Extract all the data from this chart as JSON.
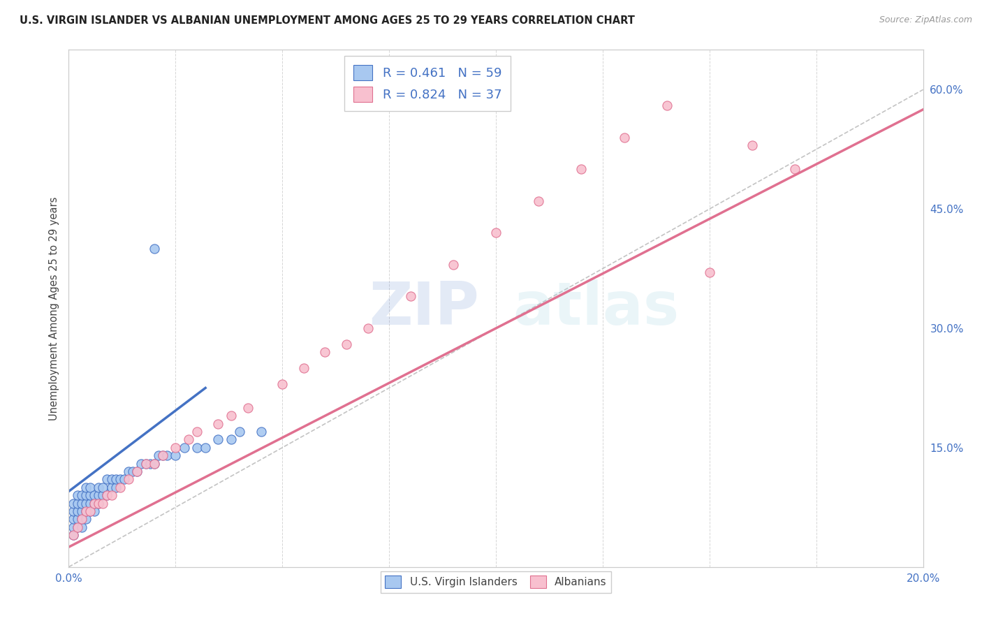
{
  "title": "U.S. VIRGIN ISLANDER VS ALBANIAN UNEMPLOYMENT AMONG AGES 25 TO 29 YEARS CORRELATION CHART",
  "source": "Source: ZipAtlas.com",
  "ylabel": "Unemployment Among Ages 25 to 29 years",
  "ylabel_ticks_labels": [
    "15.0%",
    "30.0%",
    "45.0%",
    "60.0%"
  ],
  "ylabel_ticks_vals": [
    0.15,
    0.3,
    0.45,
    0.6
  ],
  "xlim": [
    0,
    0.2
  ],
  "ylim": [
    0,
    0.65
  ],
  "vi_color": "#A8C8F0",
  "vi_edge_color": "#4472C4",
  "alb_color": "#F8C0CF",
  "alb_edge_color": "#E07090",
  "vi_line_color": "#4472C4",
  "alb_line_color": "#E07090",
  "R_vi": 0.461,
  "N_vi": 59,
  "R_alb": 0.824,
  "N_alb": 37,
  "watermark_zip": "ZIP",
  "watermark_atlas": "atlas",
  "legend_label_vi": "U.S. Virgin Islanders",
  "legend_label_alb": "Albanians",
  "vi_x": [
    0.001,
    0.001,
    0.001,
    0.001,
    0.001,
    0.002,
    0.002,
    0.002,
    0.002,
    0.002,
    0.003,
    0.003,
    0.003,
    0.003,
    0.003,
    0.004,
    0.004,
    0.004,
    0.004,
    0.004,
    0.005,
    0.005,
    0.005,
    0.005,
    0.006,
    0.006,
    0.006,
    0.007,
    0.007,
    0.007,
    0.008,
    0.008,
    0.009,
    0.009,
    0.01,
    0.01,
    0.011,
    0.011,
    0.012,
    0.013,
    0.014,
    0.015,
    0.016,
    0.017,
    0.018,
    0.019,
    0.02,
    0.021,
    0.022,
    0.023,
    0.025,
    0.027,
    0.03,
    0.032,
    0.035,
    0.038,
    0.04,
    0.045,
    0.02
  ],
  "vi_y": [
    0.04,
    0.05,
    0.06,
    0.07,
    0.08,
    0.05,
    0.06,
    0.07,
    0.08,
    0.09,
    0.05,
    0.06,
    0.07,
    0.08,
    0.09,
    0.06,
    0.07,
    0.08,
    0.09,
    0.1,
    0.07,
    0.08,
    0.09,
    0.1,
    0.07,
    0.08,
    0.09,
    0.08,
    0.09,
    0.1,
    0.09,
    0.1,
    0.09,
    0.11,
    0.1,
    0.11,
    0.1,
    0.11,
    0.11,
    0.11,
    0.12,
    0.12,
    0.12,
    0.13,
    0.13,
    0.13,
    0.13,
    0.14,
    0.14,
    0.14,
    0.14,
    0.15,
    0.15,
    0.15,
    0.16,
    0.16,
    0.17,
    0.17,
    0.4
  ],
  "alb_x": [
    0.001,
    0.002,
    0.003,
    0.004,
    0.005,
    0.006,
    0.007,
    0.008,
    0.009,
    0.01,
    0.012,
    0.014,
    0.016,
    0.018,
    0.02,
    0.022,
    0.025,
    0.028,
    0.03,
    0.035,
    0.038,
    0.042,
    0.05,
    0.055,
    0.06,
    0.065,
    0.07,
    0.08,
    0.09,
    0.1,
    0.11,
    0.12,
    0.13,
    0.14,
    0.15,
    0.16,
    0.17
  ],
  "alb_y": [
    0.04,
    0.05,
    0.06,
    0.07,
    0.07,
    0.08,
    0.08,
    0.08,
    0.09,
    0.09,
    0.1,
    0.11,
    0.12,
    0.13,
    0.13,
    0.14,
    0.15,
    0.16,
    0.17,
    0.18,
    0.19,
    0.2,
    0.23,
    0.25,
    0.27,
    0.28,
    0.3,
    0.34,
    0.38,
    0.42,
    0.46,
    0.5,
    0.54,
    0.58,
    0.37,
    0.53,
    0.5
  ],
  "vi_line_x": [
    0.0,
    0.032
  ],
  "vi_line_y": [
    0.095,
    0.225
  ],
  "alb_line_x": [
    0.0,
    0.2
  ],
  "alb_line_y": [
    0.025,
    0.575
  ],
  "ref_line_x": [
    0.0,
    0.2
  ],
  "ref_line_y": [
    0.0,
    0.6
  ]
}
